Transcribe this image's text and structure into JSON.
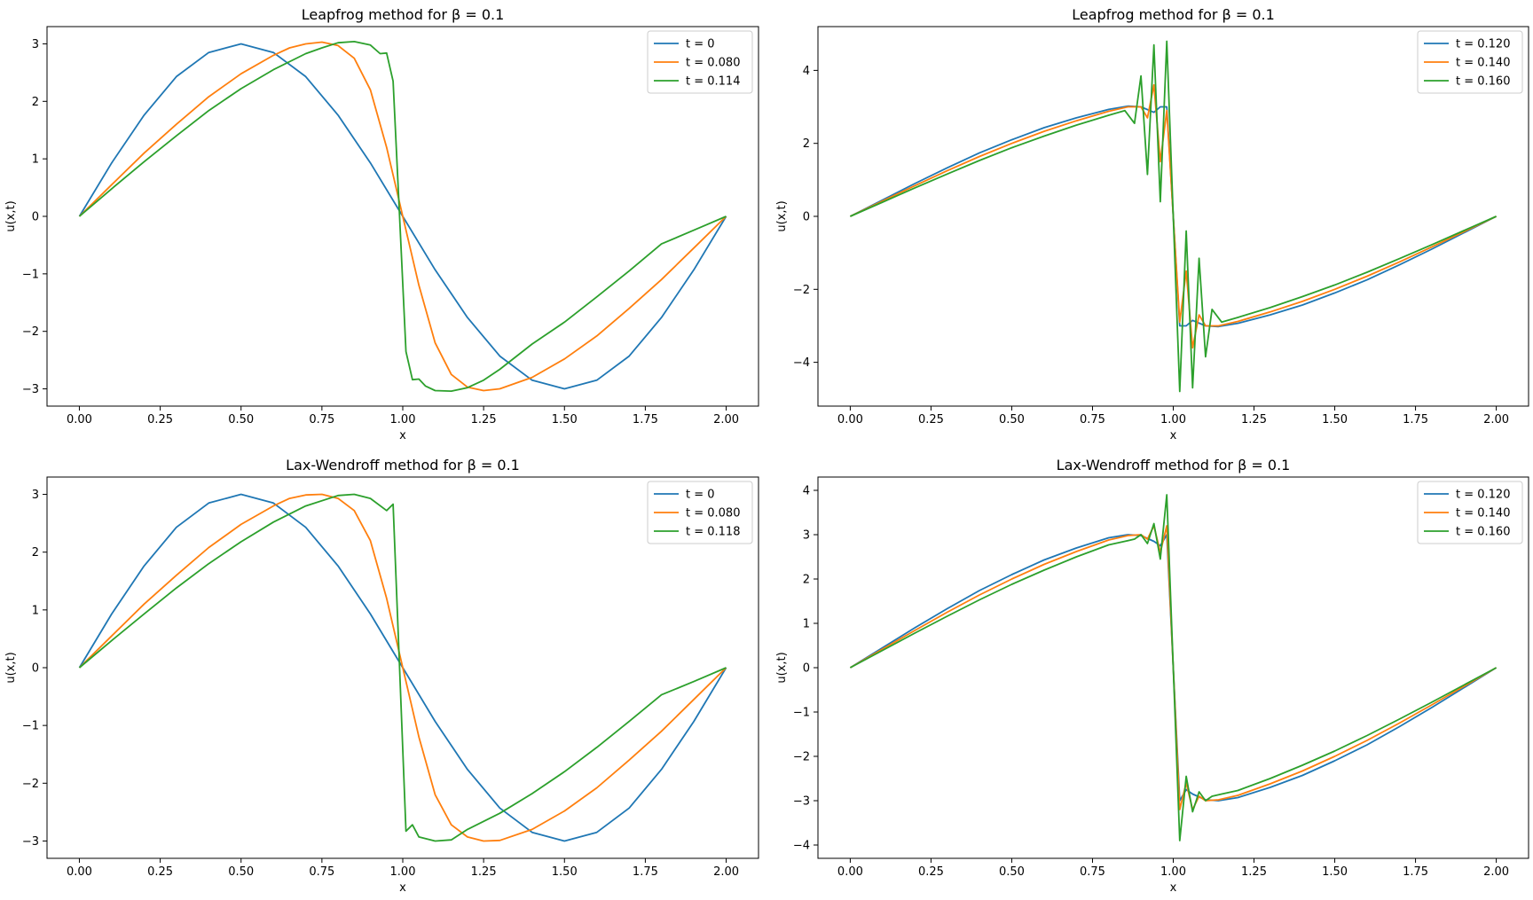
{
  "chart_data": [
    {
      "type": "line",
      "title": "Leapfrog method for β = 0.1",
      "xlabel": "x",
      "ylabel": "u(x,t)",
      "xlim": [
        -0.1,
        2.1
      ],
      "ylim": [
        -3.3,
        3.3
      ],
      "xticks": [
        0.0,
        0.25,
        0.5,
        0.75,
        1.0,
        1.25,
        1.5,
        1.75,
        2.0
      ],
      "xtick_labels": [
        "0.00",
        "0.25",
        "0.50",
        "0.75",
        "1.00",
        "1.25",
        "1.50",
        "1.75",
        "2.00"
      ],
      "yticks": [
        -3,
        -2,
        -1,
        0,
        1,
        2,
        3
      ],
      "ytick_labels": [
        "−3",
        "−2",
        "−1",
        "0",
        "1",
        "2",
        "3"
      ],
      "legend_position": "top-right",
      "series": [
        {
          "name": "t = 0",
          "color": "#1f77b4",
          "x": [
            0.0,
            0.1,
            0.2,
            0.3,
            0.4,
            0.5,
            0.6,
            0.7,
            0.8,
            0.9,
            1.0,
            1.1,
            1.2,
            1.3,
            1.4,
            1.5,
            1.6,
            1.7,
            1.8,
            1.9,
            2.0
          ],
          "values": [
            0.0,
            0.93,
            1.76,
            2.43,
            2.85,
            3.0,
            2.85,
            2.43,
            1.76,
            0.93,
            0.0,
            -0.93,
            -1.76,
            -2.43,
            -2.85,
            -3.0,
            -2.85,
            -2.43,
            -1.76,
            -0.93,
            0.0
          ]
        },
        {
          "name": "t = 0.080",
          "color": "#ff7f0e",
          "x": [
            0.0,
            0.1,
            0.2,
            0.3,
            0.4,
            0.5,
            0.6,
            0.65,
            0.7,
            0.75,
            0.8,
            0.85,
            0.9,
            0.95,
            0.975,
            1.0,
            1.025,
            1.05,
            1.1,
            1.15,
            1.2,
            1.25,
            1.3,
            1.4,
            1.5,
            1.6,
            1.7,
            1.8,
            1.9,
            2.0
          ],
          "values": [
            0.0,
            0.55,
            1.1,
            1.6,
            2.08,
            2.48,
            2.8,
            2.93,
            3.0,
            3.03,
            2.97,
            2.75,
            2.2,
            1.2,
            0.6,
            0.0,
            -0.6,
            -1.2,
            -2.2,
            -2.75,
            -2.97,
            -3.03,
            -3.0,
            -2.8,
            -2.48,
            -2.08,
            -1.6,
            -1.1,
            -0.55,
            0.0
          ]
        },
        {
          "name": "t = 0.114",
          "color": "#2ca02c",
          "x": [
            0.0,
            0.1,
            0.2,
            0.3,
            0.4,
            0.5,
            0.6,
            0.7,
            0.75,
            0.8,
            0.85,
            0.9,
            0.93,
            0.95,
            0.97,
            0.99,
            1.01,
            1.03,
            1.05,
            1.07,
            1.1,
            1.15,
            1.2,
            1.25,
            1.3,
            1.4,
            1.5,
            1.6,
            1.7,
            1.8,
            1.9,
            2.0
          ],
          "values": [
            0.0,
            0.48,
            0.95,
            1.4,
            1.84,
            2.22,
            2.55,
            2.83,
            2.93,
            3.02,
            3.04,
            2.98,
            2.83,
            2.84,
            2.35,
            0.0,
            -2.35,
            -2.84,
            -2.83,
            -2.95,
            -3.03,
            -3.04,
            -2.98,
            -2.85,
            -2.66,
            -2.22,
            -1.84,
            -1.4,
            -0.95,
            -0.48,
            -0.24,
            0.0
          ]
        }
      ]
    },
    {
      "type": "line",
      "title": "Leapfrog method for β = 0.1",
      "xlabel": "x",
      "ylabel": "u(x,t)",
      "xlim": [
        -0.1,
        2.1
      ],
      "ylim": [
        -5.2,
        5.2
      ],
      "xticks": [
        0.0,
        0.25,
        0.5,
        0.75,
        1.0,
        1.25,
        1.5,
        1.75,
        2.0
      ],
      "xtick_labels": [
        "0.00",
        "0.25",
        "0.50",
        "0.75",
        "1.00",
        "1.25",
        "1.50",
        "1.75",
        "2.00"
      ],
      "yticks": [
        -4,
        -2,
        0,
        2,
        4
      ],
      "ytick_labels": [
        "−4",
        "−2",
        "0",
        "2",
        "4"
      ],
      "legend_position": "top-right",
      "series": [
        {
          "name": "t = 0.120",
          "color": "#1f77b4",
          "x": [
            0.0,
            0.1,
            0.2,
            0.3,
            0.4,
            0.5,
            0.6,
            0.7,
            0.8,
            0.86,
            0.9,
            0.94,
            0.96,
            0.98,
            1.0,
            1.02,
            1.04,
            1.06,
            1.1,
            1.14,
            1.2,
            1.3,
            1.4,
            1.5,
            1.6,
            1.7,
            1.8,
            1.9,
            2.0
          ],
          "values": [
            0.0,
            0.45,
            0.9,
            1.33,
            1.74,
            2.1,
            2.43,
            2.7,
            2.93,
            3.02,
            3.0,
            2.85,
            3.0,
            3.0,
            0.0,
            -3.0,
            -3.0,
            -2.85,
            -3.0,
            -3.02,
            -2.93,
            -2.7,
            -2.43,
            -2.1,
            -1.74,
            -1.33,
            -0.9,
            -0.45,
            0.0
          ]
        },
        {
          "name": "t = 0.140",
          "color": "#ff7f0e",
          "x": [
            0.0,
            0.1,
            0.2,
            0.3,
            0.4,
            0.5,
            0.6,
            0.7,
            0.8,
            0.86,
            0.9,
            0.92,
            0.94,
            0.96,
            0.98,
            1.0,
            1.02,
            1.04,
            1.06,
            1.08,
            1.1,
            1.14,
            1.2,
            1.3,
            1.4,
            1.5,
            1.6,
            1.7,
            1.8,
            1.9,
            2.0
          ],
          "values": [
            0.0,
            0.42,
            0.84,
            1.25,
            1.64,
            2.0,
            2.33,
            2.62,
            2.88,
            3.0,
            3.0,
            2.7,
            3.6,
            1.5,
            2.9,
            0.0,
            -2.9,
            -1.5,
            -3.6,
            -2.7,
            -3.0,
            -3.0,
            -2.88,
            -2.62,
            -2.33,
            -2.0,
            -1.64,
            -1.25,
            -0.84,
            -0.42,
            0.0
          ]
        },
        {
          "name": "t = 0.160",
          "color": "#2ca02c",
          "x": [
            0.0,
            0.1,
            0.2,
            0.3,
            0.4,
            0.5,
            0.6,
            0.7,
            0.8,
            0.85,
            0.88,
            0.9,
            0.92,
            0.94,
            0.96,
            0.98,
            1.0,
            1.02,
            1.04,
            1.06,
            1.08,
            1.1,
            1.12,
            1.15,
            1.2,
            1.3,
            1.4,
            1.5,
            1.6,
            1.7,
            1.8,
            1.9,
            2.0
          ],
          "values": [
            0.0,
            0.39,
            0.78,
            1.16,
            1.53,
            1.88,
            2.2,
            2.5,
            2.77,
            2.9,
            2.55,
            3.85,
            1.15,
            4.7,
            0.4,
            4.8,
            0.0,
            -4.8,
            -0.4,
            -4.7,
            -1.15,
            -3.85,
            -2.55,
            -2.9,
            -2.77,
            -2.5,
            -2.2,
            -1.88,
            -1.53,
            -1.16,
            -0.78,
            -0.39,
            0.0
          ]
        }
      ]
    },
    {
      "type": "line",
      "title": "Lax-Wendroff method for β = 0.1",
      "xlabel": "x",
      "ylabel": "u(x,t)",
      "xlim": [
        -0.1,
        2.1
      ],
      "ylim": [
        -3.3,
        3.3
      ],
      "xticks": [
        0.0,
        0.25,
        0.5,
        0.75,
        1.0,
        1.25,
        1.5,
        1.75,
        2.0
      ],
      "xtick_labels": [
        "0.00",
        "0.25",
        "0.50",
        "0.75",
        "1.00",
        "1.25",
        "1.50",
        "1.75",
        "2.00"
      ],
      "yticks": [
        -3,
        -2,
        -1,
        0,
        1,
        2,
        3
      ],
      "ytick_labels": [
        "−3",
        "−2",
        "−1",
        "0",
        "1",
        "2",
        "3"
      ],
      "legend_position": "top-right",
      "series": [
        {
          "name": "t = 0",
          "color": "#1f77b4",
          "x": [
            0.0,
            0.1,
            0.2,
            0.3,
            0.4,
            0.5,
            0.6,
            0.7,
            0.8,
            0.9,
            1.0,
            1.1,
            1.2,
            1.3,
            1.4,
            1.5,
            1.6,
            1.7,
            1.8,
            1.9,
            2.0
          ],
          "values": [
            0.0,
            0.93,
            1.76,
            2.43,
            2.85,
            3.0,
            2.85,
            2.43,
            1.76,
            0.93,
            0.0,
            -0.93,
            -1.76,
            -2.43,
            -2.85,
            -3.0,
            -2.85,
            -2.43,
            -1.76,
            -0.93,
            0.0
          ]
        },
        {
          "name": "t = 0.080",
          "color": "#ff7f0e",
          "x": [
            0.0,
            0.1,
            0.2,
            0.3,
            0.4,
            0.5,
            0.6,
            0.65,
            0.7,
            0.75,
            0.8,
            0.85,
            0.9,
            0.95,
            0.975,
            1.0,
            1.025,
            1.05,
            1.1,
            1.15,
            1.2,
            1.25,
            1.3,
            1.4,
            1.5,
            1.6,
            1.7,
            1.8,
            1.9,
            2.0
          ],
          "values": [
            0.0,
            0.55,
            1.1,
            1.6,
            2.08,
            2.48,
            2.8,
            2.93,
            2.99,
            3.0,
            2.93,
            2.72,
            2.2,
            1.2,
            0.6,
            0.0,
            -0.6,
            -1.2,
            -2.2,
            -2.72,
            -2.93,
            -3.0,
            -2.99,
            -2.8,
            -2.48,
            -2.08,
            -1.6,
            -1.1,
            -0.55,
            0.0
          ]
        },
        {
          "name": "t = 0.118",
          "color": "#2ca02c",
          "x": [
            0.0,
            0.1,
            0.2,
            0.3,
            0.4,
            0.5,
            0.6,
            0.7,
            0.8,
            0.85,
            0.9,
            0.95,
            0.97,
            0.99,
            1.01,
            1.03,
            1.05,
            1.1,
            1.15,
            1.2,
            1.3,
            1.4,
            1.5,
            1.6,
            1.7,
            1.8,
            1.9,
            2.0
          ],
          "values": [
            0.0,
            0.47,
            0.93,
            1.38,
            1.8,
            2.18,
            2.52,
            2.8,
            2.98,
            3.0,
            2.93,
            2.72,
            2.83,
            0.0,
            -2.83,
            -2.72,
            -2.93,
            -3.0,
            -2.98,
            -2.8,
            -2.52,
            -2.18,
            -1.8,
            -1.38,
            -0.93,
            -0.47,
            -0.24,
            0.0
          ]
        }
      ]
    },
    {
      "type": "line",
      "title": "Lax-Wendroff method for β = 0.1",
      "xlabel": "x",
      "ylabel": "u(x,t)",
      "xlim": [
        -0.1,
        2.1
      ],
      "ylim": [
        -4.3,
        4.3
      ],
      "xticks": [
        0.0,
        0.25,
        0.5,
        0.75,
        1.0,
        1.25,
        1.5,
        1.75,
        2.0
      ],
      "xtick_labels": [
        "0.00",
        "0.25",
        "0.50",
        "0.75",
        "1.00",
        "1.25",
        "1.50",
        "1.75",
        "2.00"
      ],
      "yticks": [
        -4,
        -3,
        -2,
        -1,
        0,
        1,
        2,
        3,
        4
      ],
      "ytick_labels": [
        "−4",
        "−3",
        "−2",
        "−1",
        "0",
        "1",
        "2",
        "3",
        "4"
      ],
      "legend_position": "top-right",
      "series": [
        {
          "name": "t = 0.120",
          "color": "#1f77b4",
          "x": [
            0.0,
            0.1,
            0.2,
            0.3,
            0.4,
            0.5,
            0.6,
            0.7,
            0.8,
            0.86,
            0.9,
            0.94,
            0.96,
            0.98,
            1.0,
            1.02,
            1.04,
            1.06,
            1.1,
            1.14,
            1.2,
            1.3,
            1.4,
            1.5,
            1.6,
            1.7,
            1.8,
            1.9,
            2.0
          ],
          "values": [
            0.0,
            0.45,
            0.9,
            1.33,
            1.74,
            2.1,
            2.43,
            2.7,
            2.93,
            3.0,
            2.98,
            2.85,
            2.75,
            3.0,
            0.0,
            -3.0,
            -2.75,
            -2.85,
            -2.98,
            -3.0,
            -2.93,
            -2.7,
            -2.43,
            -2.1,
            -1.74,
            -1.33,
            -0.9,
            -0.45,
            0.0
          ]
        },
        {
          "name": "t = 0.140",
          "color": "#ff7f0e",
          "x": [
            0.0,
            0.1,
            0.2,
            0.3,
            0.4,
            0.5,
            0.6,
            0.7,
            0.8,
            0.86,
            0.9,
            0.92,
            0.94,
            0.96,
            0.98,
            1.0,
            1.02,
            1.04,
            1.06,
            1.08,
            1.1,
            1.14,
            1.2,
            1.3,
            1.4,
            1.5,
            1.6,
            1.7,
            1.8,
            1.9,
            2.0
          ],
          "values": [
            0.0,
            0.42,
            0.84,
            1.25,
            1.64,
            2.0,
            2.33,
            2.62,
            2.88,
            2.98,
            3.0,
            2.9,
            3.2,
            2.6,
            3.2,
            0.0,
            -3.2,
            -2.6,
            -3.2,
            -2.9,
            -3.0,
            -2.98,
            -2.88,
            -2.62,
            -2.33,
            -2.0,
            -1.64,
            -1.25,
            -0.84,
            -0.42,
            0.0
          ]
        },
        {
          "name": "t = 0.160",
          "color": "#2ca02c",
          "x": [
            0.0,
            0.1,
            0.2,
            0.3,
            0.4,
            0.5,
            0.6,
            0.7,
            0.8,
            0.85,
            0.88,
            0.9,
            0.92,
            0.94,
            0.96,
            0.98,
            1.0,
            1.02,
            1.04,
            1.06,
            1.08,
            1.1,
            1.12,
            1.15,
            1.2,
            1.3,
            1.4,
            1.5,
            1.6,
            1.7,
            1.8,
            1.9,
            2.0
          ],
          "values": [
            0.0,
            0.39,
            0.78,
            1.16,
            1.53,
            1.88,
            2.2,
            2.5,
            2.77,
            2.85,
            2.9,
            3.0,
            2.8,
            3.25,
            2.45,
            3.9,
            0.0,
            -3.9,
            -2.45,
            -3.25,
            -2.8,
            -3.0,
            -2.9,
            -2.85,
            -2.77,
            -2.5,
            -2.2,
            -1.88,
            -1.53,
            -1.16,
            -0.78,
            -0.39,
            0.0
          ]
        }
      ]
    }
  ]
}
